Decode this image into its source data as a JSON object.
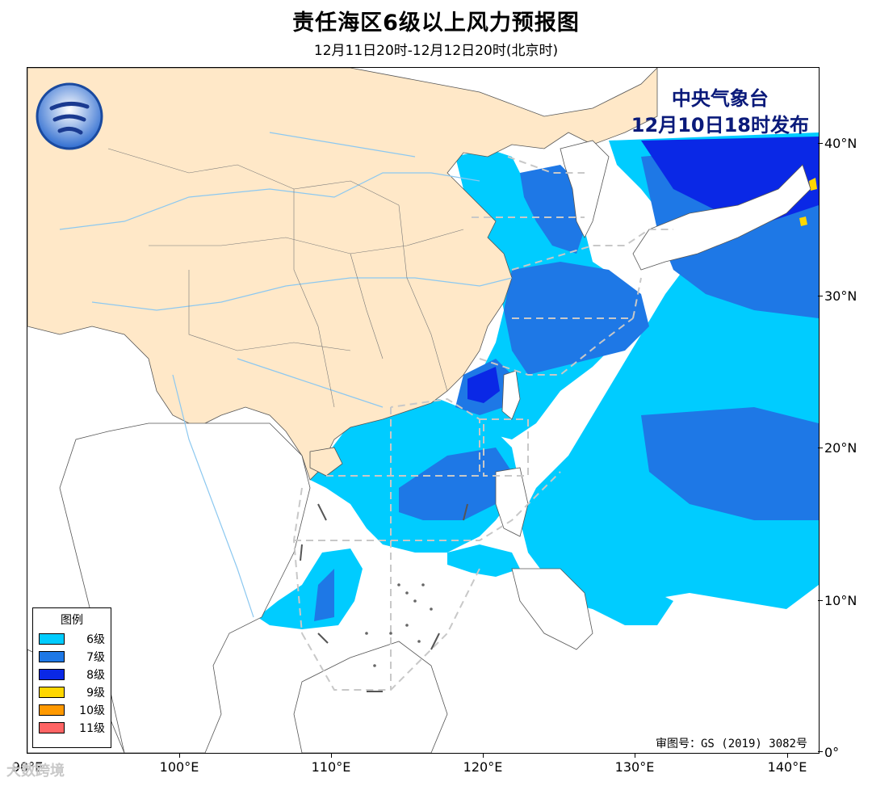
{
  "header": {
    "title": "责任海区6级以上风力预报图",
    "subtitle": "12月11日20时-12月12日20时(北京时)"
  },
  "publisher": {
    "line1": "中央气象台",
    "line2": "12月10日18时发布"
  },
  "review_number": "审图号：GS (2019) 3082号",
  "watermark": "大数跨境",
  "legend": {
    "title": "图例",
    "items": [
      {
        "label": "6级",
        "color": "#00ccff"
      },
      {
        "label": "7级",
        "color": "#1e78e6"
      },
      {
        "label": "8级",
        "color": "#0a28e6"
      },
      {
        "label": "9级",
        "color": "#ffd700"
      },
      {
        "label": "10级",
        "color": "#ff9900"
      },
      {
        "label": "11级",
        "color": "#ff6464"
      }
    ]
  },
  "axes": {
    "lat_labels": [
      "40°N",
      "30°N",
      "20°N",
      "10°N",
      "0°"
    ],
    "lon_labels": [
      "90°E",
      "100°E",
      "110°E",
      "120°E",
      "130°E",
      "140°E"
    ]
  },
  "colors": {
    "land_china": "#ffe8c8",
    "land_other": "#ffffff",
    "ocean": "#ffffff",
    "boundary_dashed": "#c8c8c8",
    "river": "#8cc8f0"
  }
}
